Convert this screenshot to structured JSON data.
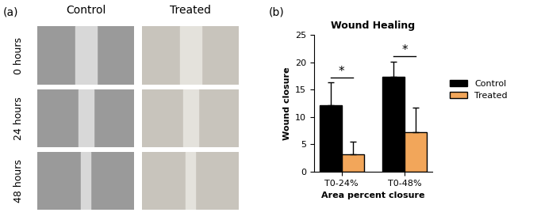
{
  "figure": {
    "panel_labels": [
      "(a)",
      "(b)"
    ],
    "image_grid": {
      "columns": [
        "Control",
        "Treated"
      ],
      "rows": [
        "0 hours",
        "24 hours",
        "48 hours"
      ]
    }
  },
  "chart_data": {
    "type": "bar",
    "title": "Wound Healing",
    "x_label": "Area percent closure",
    "y_label": "Wound closure",
    "categories": [
      "T0-24%",
      "T0-48%"
    ],
    "series": [
      {
        "name": "Control",
        "color": "#000000",
        "values": [
          12.1,
          17.4
        ],
        "errors": [
          4.2,
          2.7
        ]
      },
      {
        "name": "Treated",
        "color": "#f2a65a",
        "values": [
          3.2,
          7.3
        ],
        "errors": [
          2.3,
          4.4
        ]
      }
    ],
    "ylim": [
      0,
      25
    ],
    "yticks": [
      0,
      5,
      10,
      15,
      20,
      25
    ],
    "legend": "center left",
    "annotations": [
      {
        "category": "T0-24%",
        "text": "*"
      },
      {
        "category": "T0-48%",
        "text": "*"
      }
    ]
  }
}
